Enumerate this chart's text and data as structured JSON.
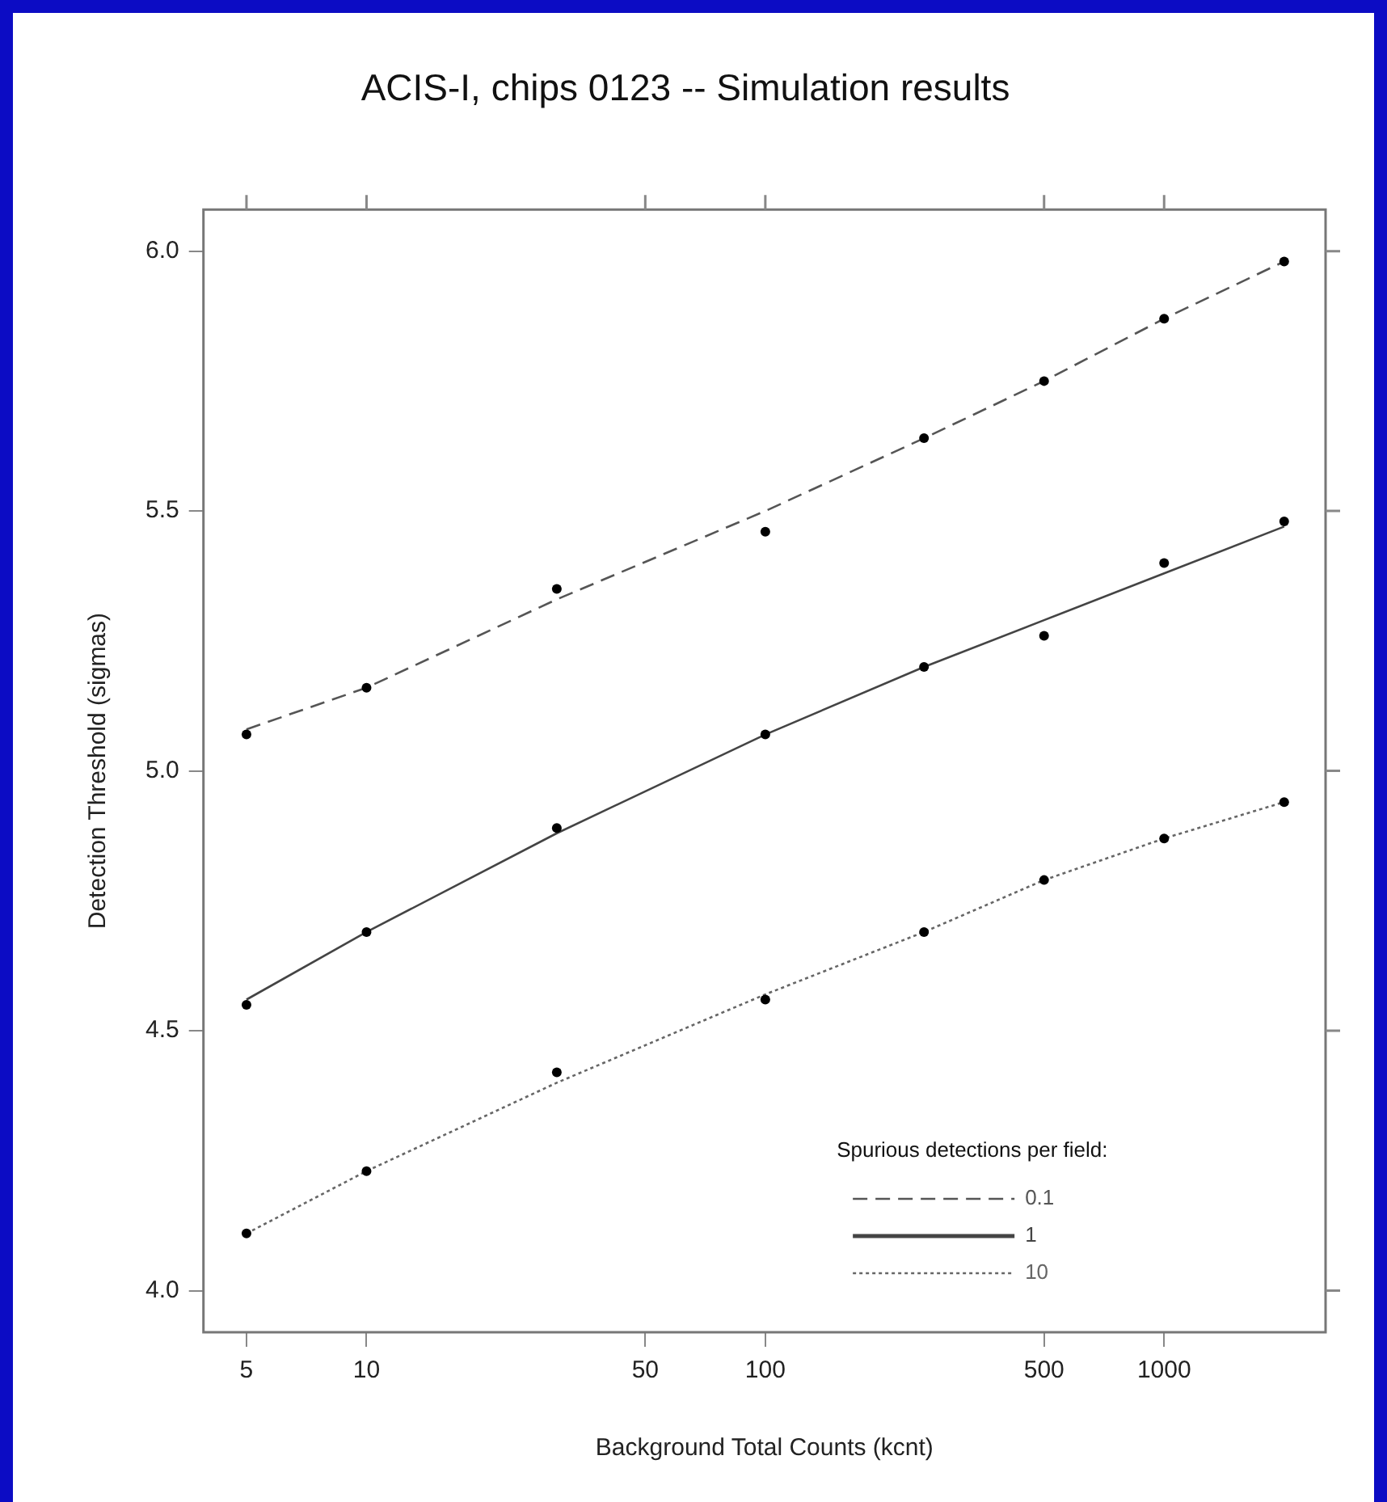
{
  "chart_data": {
    "type": "scatter",
    "title": "ACIS-I, chips 0123 -- Simulation results",
    "xlabel": "Background Total Counts (kcnt)",
    "ylabel": "Detection Threshold (sigmas)",
    "legend_title": "Spurious detections per field:",
    "log": "x",
    "grid": false,
    "legend": "bottom right",
    "marker": "circle",
    "x": [
      5,
      10,
      30,
      100,
      250,
      500,
      1000,
      2000
    ],
    "xlim": [
      3.9,
      2540
    ],
    "xticks": [
      5,
      10,
      50,
      100,
      500,
      1000
    ],
    "ylim": [
      3.92,
      6.08
    ],
    "yticks": [
      {
        "value": 4,
        "label": "4.0"
      },
      {
        "value": 4.5,
        "label": "4.5"
      },
      {
        "value": 5,
        "label": "5.0"
      },
      {
        "value": 5.5,
        "label": "5.5"
      },
      {
        "value": 6,
        "label": "6.0"
      }
    ],
    "series": [
      {
        "type": "scatter",
        "color": "#000000",
        "values": [
          5.07,
          5.16,
          5.35,
          5.46,
          5.64,
          5.75,
          5.87,
          5.98
        ]
      },
      {
        "type": "scatter",
        "color": "#000000",
        "values": [
          4.55,
          4.69,
          4.89,
          5.07,
          5.2,
          5.26,
          5.4,
          5.48
        ]
      },
      {
        "type": "scatter",
        "color": "#000000",
        "values": [
          4.11,
          4.23,
          4.42,
          4.56,
          4.69,
          4.79,
          4.87,
          4.94
        ]
      },
      {
        "type": "line",
        "name": "0.1",
        "color": "#555555",
        "line_style": "dashed",
        "marker": "none",
        "values": [
          5.08,
          5.16,
          5.33,
          5.5,
          5.64,
          5.75,
          5.87,
          5.98
        ]
      },
      {
        "type": "line",
        "name": "1",
        "color": "#444444",
        "line_style": "solid",
        "marker": "none",
        "values": [
          4.56,
          4.69,
          4.88,
          5.07,
          5.2,
          5.29,
          5.38,
          5.47
        ]
      },
      {
        "type": "line",
        "name": "10",
        "color": "#666666",
        "line_style": "dotted",
        "marker": "none",
        "values": [
          4.11,
          4.23,
          4.4,
          4.57,
          4.69,
          4.79,
          4.87,
          4.94
        ]
      }
    ]
  }
}
